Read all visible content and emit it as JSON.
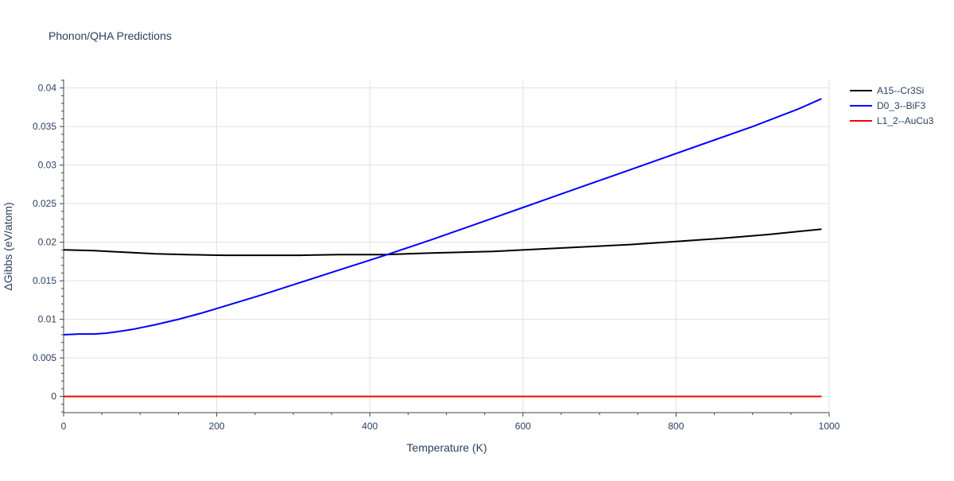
{
  "chart_data": {
    "type": "line",
    "title": "Phonon/QHA Predictions",
    "xlabel": "Temperature (K)",
    "ylabel": "ΔGibbs (eV/atom)",
    "xlim": [
      0,
      1000
    ],
    "ylim": [
      -0.0021,
      0.0411
    ],
    "xticks": [
      0,
      200,
      400,
      600,
      800,
      1000
    ],
    "xtick_labels": [
      "0",
      "200",
      "400",
      "600",
      "800",
      "1000"
    ],
    "yticks": [
      0,
      0.005,
      0.01,
      0.015,
      0.02,
      0.025,
      0.03,
      0.035,
      0.04
    ],
    "ytick_labels": [
      "0",
      "0.005",
      "0.01",
      "0.015",
      "0.02",
      "0.025",
      "0.03",
      "0.035",
      "0.04"
    ],
    "grid": true,
    "legend_position": "top-right",
    "series": [
      {
        "name": "A15--Cr3Si",
        "color": "#000000",
        "x": [
          0,
          40,
          80,
          120,
          160,
          210,
          260,
          310,
          360,
          420,
          480,
          560,
          620,
          680,
          740,
          800,
          860,
          920,
          990
        ],
        "y": [
          0.019,
          0.0189,
          0.0187,
          0.0185,
          0.0184,
          0.0183,
          0.0183,
          0.0183,
          0.0184,
          0.0184,
          0.0186,
          0.0188,
          0.0191,
          0.0194,
          0.0197,
          0.0201,
          0.0205,
          0.021,
          0.0217
        ]
      },
      {
        "name": "D0_3--BiF3",
        "color": "#0000ff",
        "x": [
          0,
          20,
          40,
          55,
          70,
          90,
          120,
          150,
          180,
          210,
          260,
          310,
          360,
          420,
          480,
          540,
          600,
          660,
          720,
          780,
          840,
          900,
          960,
          990
        ],
        "y": [
          0.008,
          0.0081,
          0.0081,
          0.0082,
          0.0084,
          0.0087,
          0.0093,
          0.01,
          0.0108,
          0.0117,
          0.0132,
          0.0148,
          0.0164,
          0.0183,
          0.0203,
          0.0224,
          0.0245,
          0.0266,
          0.0287,
          0.0308,
          0.0329,
          0.035,
          0.0373,
          0.0386
        ]
      },
      {
        "name": "L1_2--AuCu3",
        "color": "#ff0000",
        "x": [
          0,
          990
        ],
        "y": [
          0,
          0
        ]
      }
    ]
  }
}
